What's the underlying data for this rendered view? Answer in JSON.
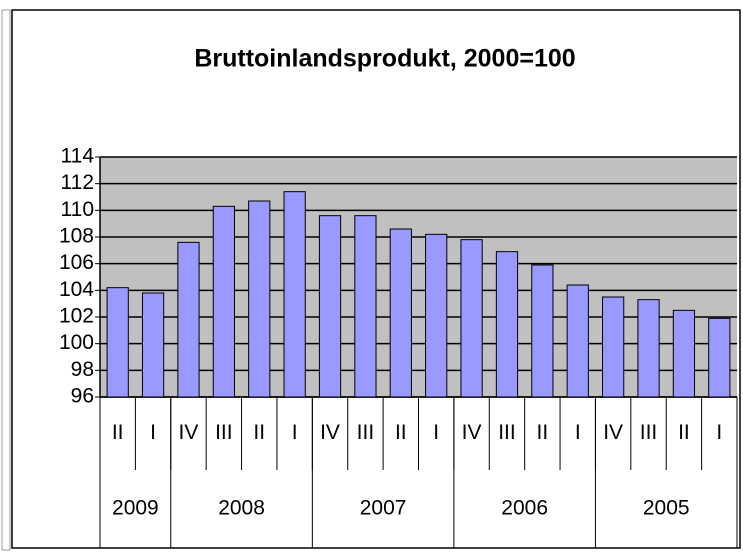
{
  "chart_data": {
    "type": "bar",
    "title": "Bruttoinlandsprodukt, 2000=100",
    "categories": [
      "II",
      "I",
      "IV",
      "III",
      "II",
      "I",
      "IV",
      "III",
      "II",
      "I",
      "IV",
      "III",
      "II",
      "I",
      "IV",
      "III",
      "II",
      "I"
    ],
    "groups": [
      {
        "name": "2009",
        "size": 2
      },
      {
        "name": "2008",
        "size": 4
      },
      {
        "name": "2007",
        "size": 4
      },
      {
        "name": "2006",
        "size": 4
      },
      {
        "name": "2005",
        "size": 4
      }
    ],
    "values": [
      104.2,
      103.8,
      107.6,
      110.3,
      110.7,
      111.4,
      109.6,
      109.6,
      108.6,
      108.2,
      107.8,
      106.9,
      105.9,
      104.4,
      103.5,
      103.3,
      102.5,
      101.9
    ],
    "color": "#9999ff",
    "plot_background": "#c0c0c0",
    "ylim": [
      96,
      114
    ],
    "yticks": [
      96,
      98,
      100,
      102,
      104,
      106,
      108,
      110,
      112,
      114
    ],
    "grid": true
  }
}
